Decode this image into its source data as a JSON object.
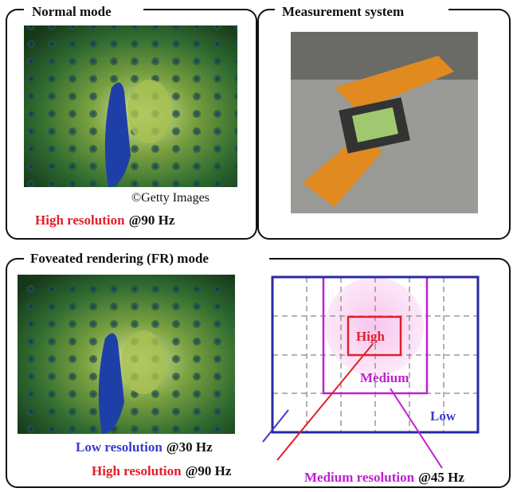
{
  "panels": {
    "normal": {
      "title": "Normal mode",
      "credit": "©Getty Images",
      "caption": {
        "label": "High resolution",
        "rate": "@90 Hz"
      }
    },
    "measurement": {
      "title": "Measurement system"
    },
    "foveated": {
      "title": "Foveated rendering (FR) mode",
      "regions": {
        "high": "High",
        "medium": "Medium",
        "low": "Low"
      },
      "captions": [
        {
          "label": "Low resolution",
          "rate": "@30 Hz"
        },
        {
          "label": "High resolution",
          "rate": "@90 Hz"
        },
        {
          "label": "Medium resolution",
          "rate": "@45 Hz"
        }
      ]
    }
  }
}
